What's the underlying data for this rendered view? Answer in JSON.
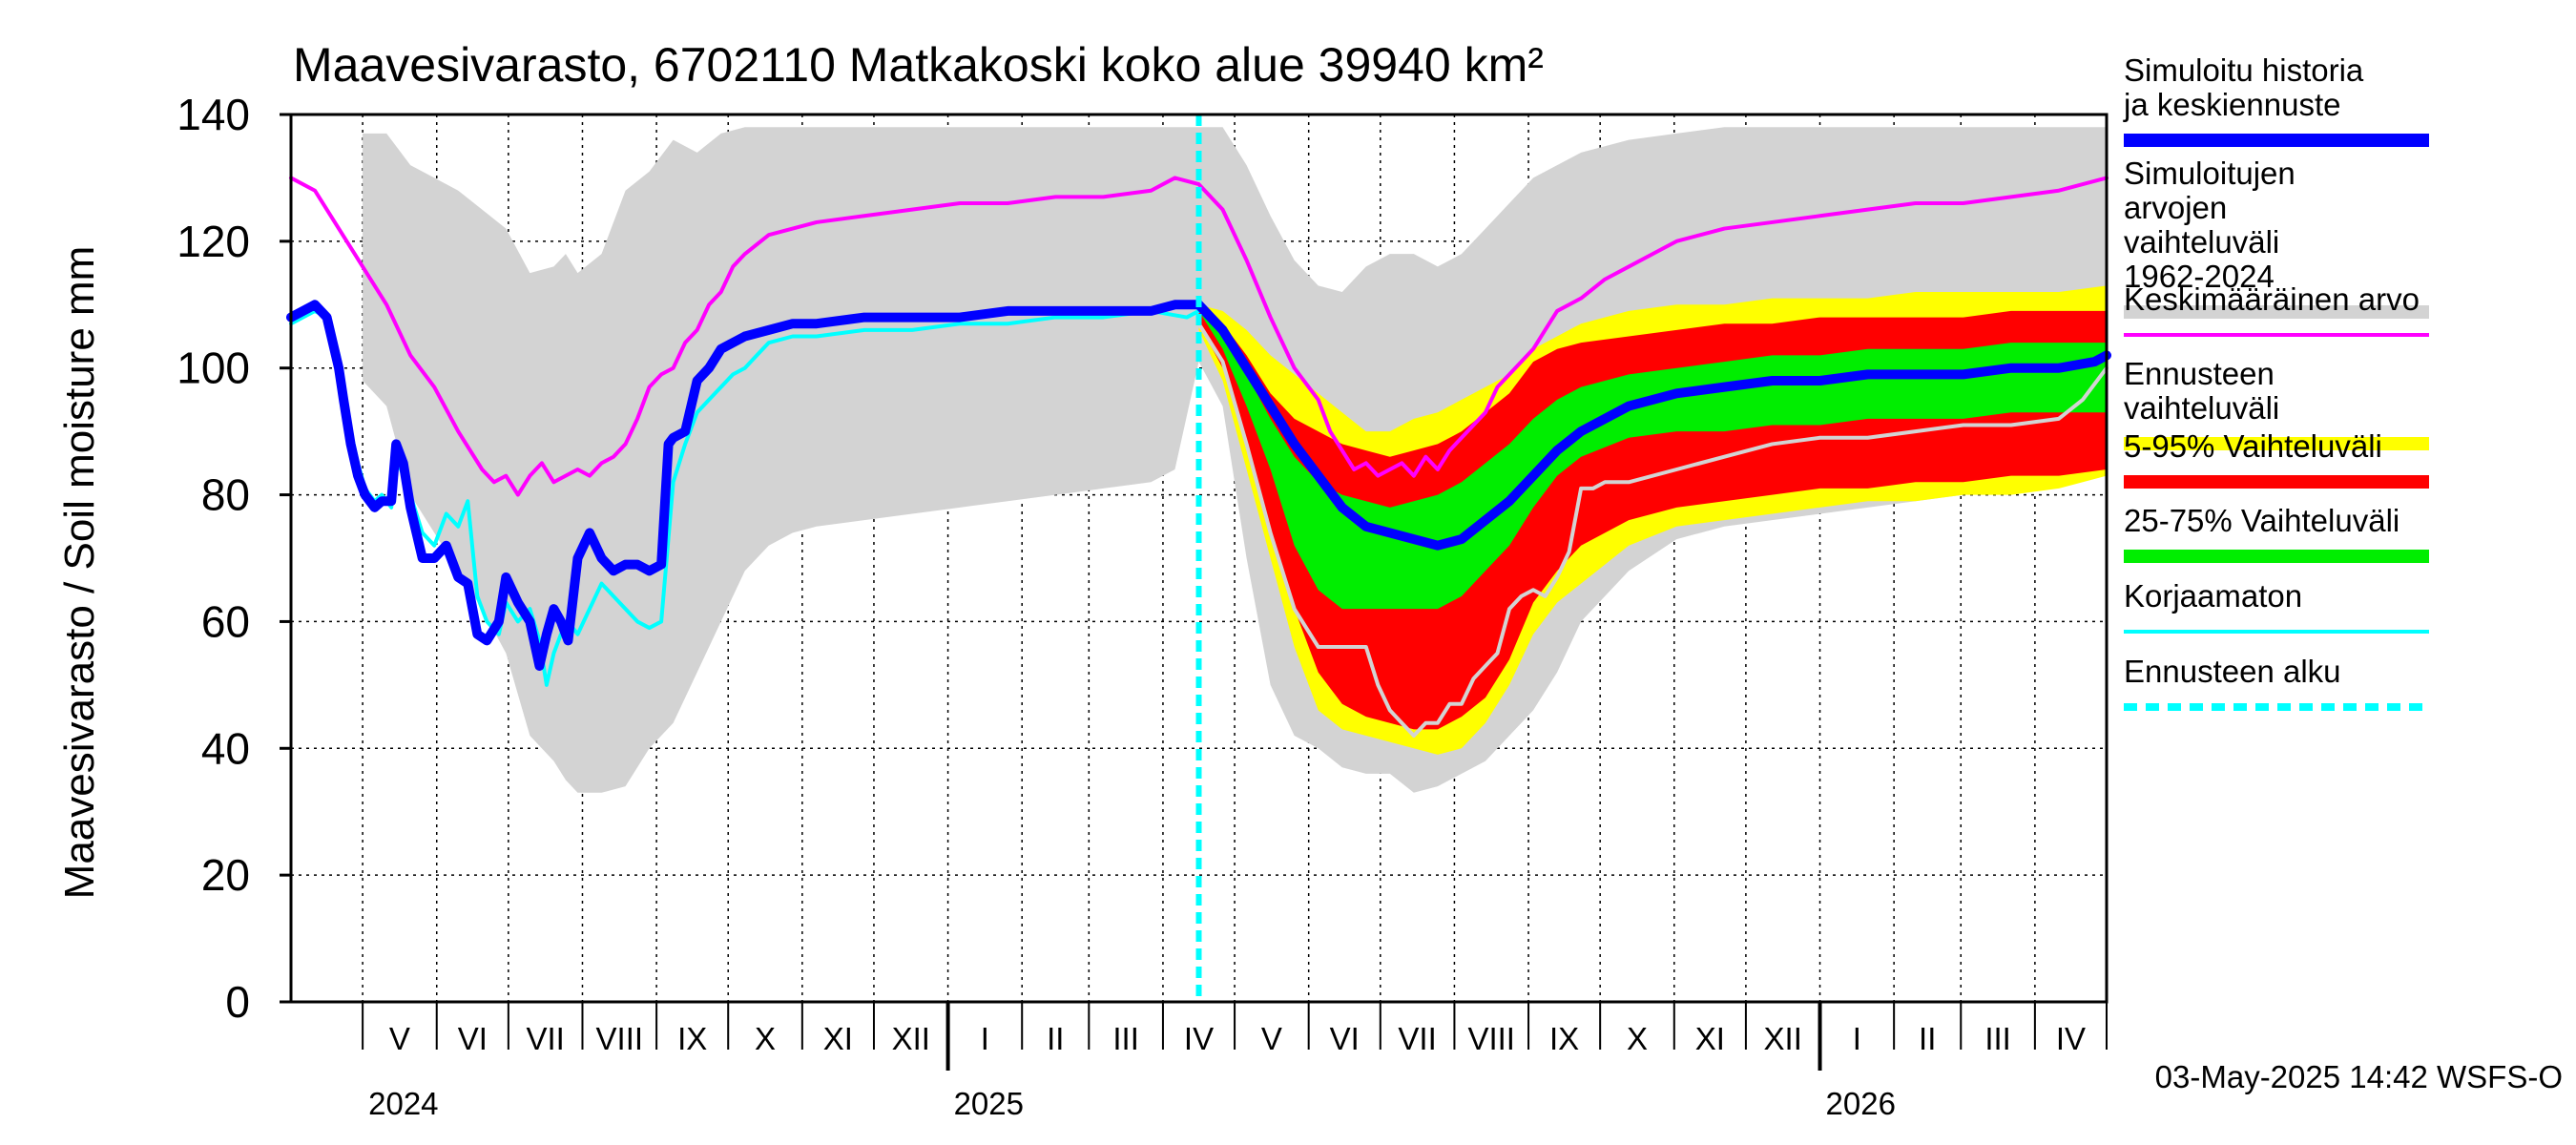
{
  "chart_data": {
    "type": "area",
    "title": "Maavesivarasto, 6702110 Matkakoski koko alue 39940 km²",
    "ylabel": "Maavesivarasto / Soil moisture   mm",
    "xlabel": "",
    "ylim": [
      0,
      140
    ],
    "yticks": [
      0,
      20,
      40,
      60,
      80,
      100,
      120,
      140
    ],
    "grid": true,
    "legend_position": "right",
    "x_unit": "days since 2024-04-01 (end 2026-05-01 = 760)",
    "xlim": [
      0,
      760
    ],
    "forecast_start_day": 380,
    "months": [
      {
        "label": "V",
        "start": 30,
        "end": 61
      },
      {
        "label": "VI",
        "start": 61,
        "end": 91
      },
      {
        "label": "VII",
        "start": 91,
        "end": 122
      },
      {
        "label": "VIII",
        "start": 122,
        "end": 153
      },
      {
        "label": "IX",
        "start": 153,
        "end": 183
      },
      {
        "label": "X",
        "start": 183,
        "end": 214
      },
      {
        "label": "XI",
        "start": 214,
        "end": 244
      },
      {
        "label": "XII",
        "start": 244,
        "end": 275
      },
      {
        "label": "I",
        "start": 275,
        "end": 306
      },
      {
        "label": "II",
        "start": 306,
        "end": 334
      },
      {
        "label": "III",
        "start": 334,
        "end": 365
      },
      {
        "label": "IV",
        "start": 365,
        "end": 395
      },
      {
        "label": "V",
        "start": 395,
        "end": 426
      },
      {
        "label": "VI",
        "start": 426,
        "end": 456
      },
      {
        "label": "VII",
        "start": 456,
        "end": 487
      },
      {
        "label": "VIII",
        "start": 487,
        "end": 518
      },
      {
        "label": "IX",
        "start": 518,
        "end": 548
      },
      {
        "label": "X",
        "start": 548,
        "end": 579
      },
      {
        "label": "XI",
        "start": 579,
        "end": 609
      },
      {
        "label": "XII",
        "start": 609,
        "end": 640
      },
      {
        "label": "I",
        "start": 640,
        "end": 671
      },
      {
        "label": "II",
        "start": 671,
        "end": 699
      },
      {
        "label": "III",
        "start": 699,
        "end": 730
      },
      {
        "label": "IV",
        "start": 730,
        "end": 760
      }
    ],
    "years": [
      {
        "label": "2024",
        "day": 30
      },
      {
        "label": "2025",
        "day": 275
      },
      {
        "label": "2026",
        "day": 640
      }
    ],
    "series": [
      {
        "name": "Simuloitujen arvojen vaihteluväli 1962-2024",
        "kind": "band",
        "color": "#d3d3d3",
        "x": [
          30,
          40,
          50,
          60,
          70,
          80,
          90,
          100,
          110,
          115,
          120,
          130,
          140,
          150,
          160,
          170,
          180,
          190,
          200,
          210,
          220,
          240,
          260,
          280,
          300,
          320,
          340,
          360,
          370,
          380,
          390,
          400,
          410,
          420,
          430,
          440,
          450,
          460,
          470,
          480,
          490,
          500,
          510,
          520,
          530,
          540,
          560,
          580,
          600,
          620,
          640,
          660,
          680,
          700,
          720,
          740,
          760
        ],
        "upper": [
          137,
          137,
          132,
          130,
          128,
          125,
          122,
          115,
          116,
          118,
          115,
          118,
          128,
          131,
          136,
          134,
          137,
          138,
          138,
          138,
          138,
          138,
          138,
          138,
          138,
          138,
          138,
          138,
          138,
          138,
          138,
          132,
          124,
          117,
          113,
          112,
          116,
          118,
          118,
          116,
          118,
          122,
          126,
          130,
          132,
          134,
          136,
          137,
          138,
          138,
          138,
          138,
          138,
          138,
          138,
          138,
          138
        ],
        "lower": [
          98,
          94,
          80,
          74,
          68,
          62,
          55,
          42,
          38,
          35,
          33,
          33,
          34,
          40,
          44,
          52,
          60,
          68,
          72,
          74,
          75,
          76,
          77,
          78,
          79,
          80,
          81,
          82,
          84,
          101,
          94,
          70,
          50,
          42,
          40,
          37,
          36,
          36,
          33,
          34,
          36,
          38,
          42,
          46,
          52,
          60,
          68,
          73,
          75,
          76,
          77,
          78,
          79,
          80,
          81,
          82,
          83
        ]
      },
      {
        "name": "Ennusteen vaihteluväli",
        "kind": "band",
        "color": "#ffff00",
        "x": [
          380,
          390,
          400,
          410,
          420,
          430,
          440,
          450,
          460,
          470,
          480,
          490,
          500,
          510,
          520,
          530,
          540,
          560,
          580,
          600,
          620,
          640,
          660,
          680,
          700,
          720,
          740,
          760
        ],
        "upper": [
          110,
          109,
          106,
          102,
          99,
          96,
          93,
          90,
          90,
          92,
          93,
          95,
          97,
          99,
          103,
          105,
          107,
          109,
          110,
          110,
          111,
          111,
          111,
          112,
          112,
          112,
          112,
          113
        ],
        "lower": [
          106,
          98,
          84,
          70,
          56,
          46,
          43,
          42,
          41,
          40,
          39,
          40,
          44,
          50,
          58,
          63,
          66,
          72,
          75,
          76,
          77,
          78,
          79,
          79,
          80,
          80,
          81,
          83
        ]
      },
      {
        "name": "5-95% Vaihteluväli",
        "kind": "band",
        "color": "#ff0000",
        "x": [
          380,
          390,
          400,
          410,
          420,
          430,
          440,
          450,
          460,
          470,
          480,
          490,
          500,
          510,
          520,
          530,
          540,
          560,
          580,
          600,
          620,
          640,
          660,
          680,
          700,
          720,
          740,
          760
        ],
        "upper": [
          110,
          107,
          102,
          96,
          92,
          90,
          88,
          87,
          86,
          87,
          88,
          90,
          93,
          96,
          101,
          103,
          104,
          105,
          106,
          107,
          107,
          108,
          108,
          108,
          108,
          109,
          109,
          109
        ],
        "lower": [
          107,
          100,
          88,
          75,
          62,
          52,
          47,
          45,
          44,
          43,
          43,
          45,
          48,
          54,
          63,
          68,
          72,
          76,
          78,
          79,
          80,
          81,
          81,
          82,
          82,
          83,
          83,
          84
        ]
      },
      {
        "name": "25-75% Vaihteluväli",
        "kind": "band",
        "color": "#00ee00",
        "x": [
          380,
          390,
          400,
          410,
          420,
          430,
          440,
          450,
          460,
          470,
          480,
          490,
          500,
          510,
          520,
          530,
          540,
          560,
          580,
          600,
          620,
          640,
          660,
          680,
          700,
          720,
          740,
          760
        ],
        "upper": [
          110,
          106,
          99,
          92,
          86,
          82,
          80,
          79,
          78,
          79,
          80,
          82,
          85,
          88,
          92,
          95,
          97,
          99,
          100,
          101,
          102,
          102,
          103,
          103,
          103,
          104,
          104,
          104
        ],
        "lower": [
          109,
          103,
          94,
          84,
          72,
          65,
          62,
          62,
          62,
          62,
          62,
          64,
          68,
          72,
          78,
          83,
          86,
          89,
          90,
          90,
          91,
          91,
          92,
          92,
          92,
          93,
          93,
          93
        ]
      },
      {
        "name": "Keskimääräinen arvo",
        "kind": "line",
        "color": "#ff00ff",
        "width": 4,
        "x": [
          0,
          10,
          20,
          30,
          40,
          50,
          60,
          70,
          80,
          85,
          90,
          95,
          100,
          105,
          110,
          115,
          120,
          125,
          130,
          135,
          140,
          145,
          150,
          155,
          160,
          165,
          170,
          175,
          180,
          185,
          190,
          200,
          210,
          220,
          240,
          260,
          280,
          300,
          320,
          340,
          360,
          370,
          380,
          390,
          400,
          410,
          420,
          430,
          435,
          440,
          445,
          450,
          455,
          460,
          465,
          470,
          475,
          480,
          485,
          490,
          495,
          500,
          505,
          510,
          515,
          520,
          525,
          530,
          540,
          550,
          560,
          570,
          580,
          590,
          600,
          620,
          640,
          660,
          680,
          700,
          720,
          740,
          760
        ],
        "y": [
          130,
          128,
          122,
          116,
          110,
          102,
          97,
          90,
          84,
          82,
          83,
          80,
          83,
          85,
          82,
          83,
          84,
          83,
          85,
          86,
          88,
          92,
          97,
          99,
          100,
          104,
          106,
          110,
          112,
          116,
          118,
          121,
          122,
          123,
          124,
          125,
          126,
          126,
          127,
          127,
          128,
          130,
          129,
          125,
          117,
          108,
          100,
          95,
          90,
          87,
          84,
          85,
          83,
          84,
          85,
          83,
          86,
          84,
          87,
          89,
          91,
          93,
          97,
          99,
          101,
          103,
          106,
          109,
          111,
          114,
          116,
          118,
          120,
          121,
          122,
          123,
          124,
          125,
          126,
          126,
          127,
          128,
          130
        ]
      },
      {
        "name": "Korjaamaton",
        "kind": "line",
        "color": "#00ffff",
        "width": 4,
        "x": [
          0,
          5,
          10,
          15,
          20,
          22,
          25,
          28,
          31,
          35,
          38,
          42,
          44,
          47,
          50,
          55,
          60,
          65,
          70,
          74,
          78,
          82,
          87,
          90,
          95,
          100,
          104,
          107,
          110,
          113,
          116,
          120,
          125,
          130,
          135,
          140,
          145,
          150,
          155,
          160,
          165,
          170,
          175,
          180,
          185,
          190,
          195,
          200,
          210,
          220,
          240,
          260,
          280,
          300,
          320,
          340,
          360,
          375,
          380
        ],
        "y": [
          107,
          108,
          109,
          108,
          102,
          97,
          90,
          85,
          81,
          79,
          80,
          78,
          86,
          83,
          80,
          74,
          72,
          77,
          75,
          79,
          64,
          60,
          58,
          63,
          60,
          62,
          57,
          50,
          55,
          58,
          60,
          58,
          62,
          66,
          64,
          62,
          60,
          59,
          60,
          82,
          88,
          93,
          95,
          97,
          99,
          100,
          102,
          104,
          105,
          105,
          106,
          106,
          107,
          107,
          108,
          108,
          109,
          108,
          109
        ]
      },
      {
        "name": "Simuloitu historia ja keskiennuste",
        "kind": "line",
        "color": "#0000ff",
        "width": 10,
        "x": [
          0,
          5,
          10,
          15,
          20,
          22,
          25,
          28,
          31,
          35,
          38,
          42,
          44,
          47,
          50,
          55,
          60,
          65,
          70,
          74,
          78,
          82,
          87,
          90,
          95,
          100,
          104,
          107,
          110,
          113,
          116,
          120,
          125,
          130,
          135,
          140,
          145,
          150,
          155,
          158,
          160,
          165,
          170,
          175,
          180,
          185,
          190,
          200,
          210,
          220,
          240,
          260,
          280,
          300,
          320,
          340,
          360,
          370,
          380,
          390,
          400,
          410,
          420,
          430,
          440,
          450,
          460,
          470,
          480,
          490,
          500,
          510,
          520,
          530,
          540,
          560,
          580,
          600,
          620,
          640,
          660,
          680,
          700,
          720,
          740,
          755,
          760
        ],
        "y": [
          108,
          109,
          110,
          108,
          100,
          95,
          88,
          83,
          80,
          78,
          79,
          79,
          88,
          85,
          78,
          70,
          70,
          72,
          67,
          66,
          58,
          57,
          60,
          67,
          63,
          60,
          53,
          58,
          62,
          60,
          57,
          70,
          74,
          70,
          68,
          69,
          69,
          68,
          69,
          88,
          89,
          90,
          98,
          100,
          103,
          104,
          105,
          106,
          107,
          107,
          108,
          108,
          108,
          109,
          109,
          109,
          109,
          110,
          110,
          106,
          100,
          94,
          88,
          83,
          78,
          75,
          74,
          73,
          72,
          73,
          76,
          79,
          83,
          87,
          90,
          94,
          96,
          97,
          98,
          98,
          99,
          99,
          99,
          100,
          100,
          101,
          102
        ]
      },
      {
        "name": "Ennusteen alku",
        "kind": "vline",
        "color": "#00ffff",
        "width": 6,
        "dash": "12 7",
        "x": 380
      }
    ],
    "extra_line": {
      "color": "#d3d3d3",
      "width": 4,
      "x": [
        380,
        390,
        400,
        410,
        420,
        430,
        440,
        450,
        455,
        460,
        465,
        470,
        475,
        480,
        485,
        490,
        495,
        500,
        505,
        510,
        515,
        520,
        525,
        530,
        535,
        540,
        545,
        550,
        560,
        580,
        600,
        620,
        640,
        660,
        680,
        700,
        720,
        740,
        750,
        760
      ],
      "y": [
        107,
        101,
        88,
        74,
        62,
        56,
        56,
        56,
        50,
        46,
        44,
        42,
        44,
        44,
        47,
        47,
        51,
        53,
        55,
        62,
        64,
        65,
        64,
        67,
        71,
        81,
        81,
        82,
        82,
        84,
        86,
        88,
        89,
        89,
        90,
        91,
        91,
        92,
        95,
        100
      ]
    },
    "legend": [
      {
        "label": "Simuloitu historia ja keskiennuste",
        "color": "#0000ff",
        "style": "thick"
      },
      {
        "label": "Simuloitujen arvojen vaihteluväli 1962-2024",
        "color": "#d3d3d3",
        "style": "thick"
      },
      {
        "label": "Keskimääräinen arvo",
        "color": "#ff00ff",
        "style": "thin"
      },
      {
        "label": "Ennusteen vaihteluväli",
        "color": "#ffff00",
        "style": "thick"
      },
      {
        "label": "5-95% Vaihteluväli",
        "color": "#ff0000",
        "style": "thick"
      },
      {
        "label": "25-75% Vaihteluväli",
        "color": "#00ee00",
        "style": "thick"
      },
      {
        "label": "Korjaamaton",
        "color": "#00ffff",
        "style": "thin"
      },
      {
        "label": "Ennusteen alku",
        "color": "#00ffff",
        "style": "dashed"
      }
    ],
    "footer": "03-May-2025 14:42 WSFS-O"
  }
}
